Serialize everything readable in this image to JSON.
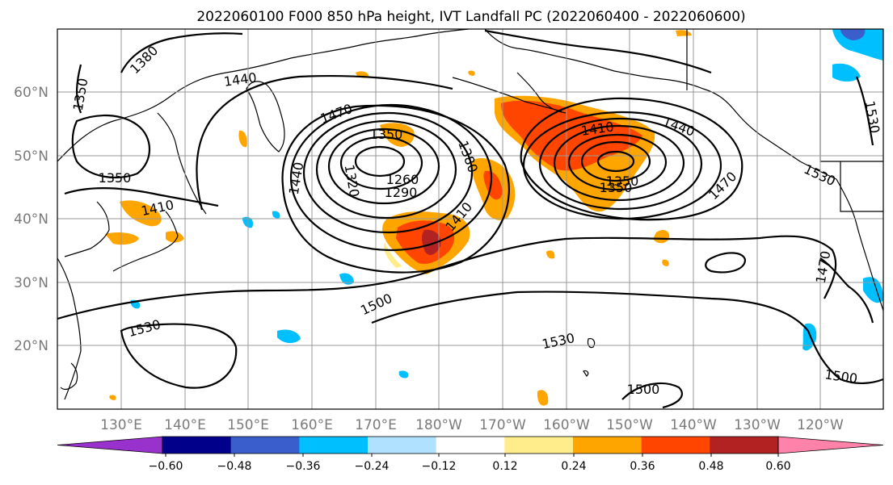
{
  "title": "2022060100 F000 850 hPa height, IVT Landfall PC (2022060400 - 2022060600)",
  "lat_labels": [
    "60°N",
    "50°N",
    "40°N",
    "30°N",
    "20°N"
  ],
  "lon_labels": [
    "130°E",
    "140°E",
    "150°E",
    "160°E",
    "170°E",
    "180°W",
    "170°W",
    "160°W",
    "150°W",
    "140°W",
    "130°W",
    "120°W"
  ],
  "contour_labels": [
    "1350",
    "1380",
    "1440",
    "1470",
    "1350",
    "1350",
    "1410",
    "1440",
    "1380",
    "1260",
    "1290",
    "1320",
    "1440",
    "1410",
    "1410",
    "1350",
    "1350",
    "1470",
    "1530",
    "1530",
    "1500",
    "1530",
    "1500",
    "1500",
    "1470",
    "1530"
  ],
  "colorbar": {
    "ticks": [
      "−0.60",
      "−0.48",
      "−0.36",
      "−0.24",
      "−0.12",
      "0.12",
      "0.24",
      "0.36",
      "0.48",
      "0.60"
    ],
    "colors": [
      "#9932cc",
      "#00008b",
      "#3a5fcd",
      "#00bfff",
      "#b0e2ff",
      "#ffffff",
      "#ffec8b",
      "#ffa500",
      "#ff4500",
      "#b22222",
      "#ff82ab"
    ]
  },
  "colors": {
    "contour": "#000000",
    "grid": "#999999",
    "tick_label": "#7a7a7a"
  }
}
